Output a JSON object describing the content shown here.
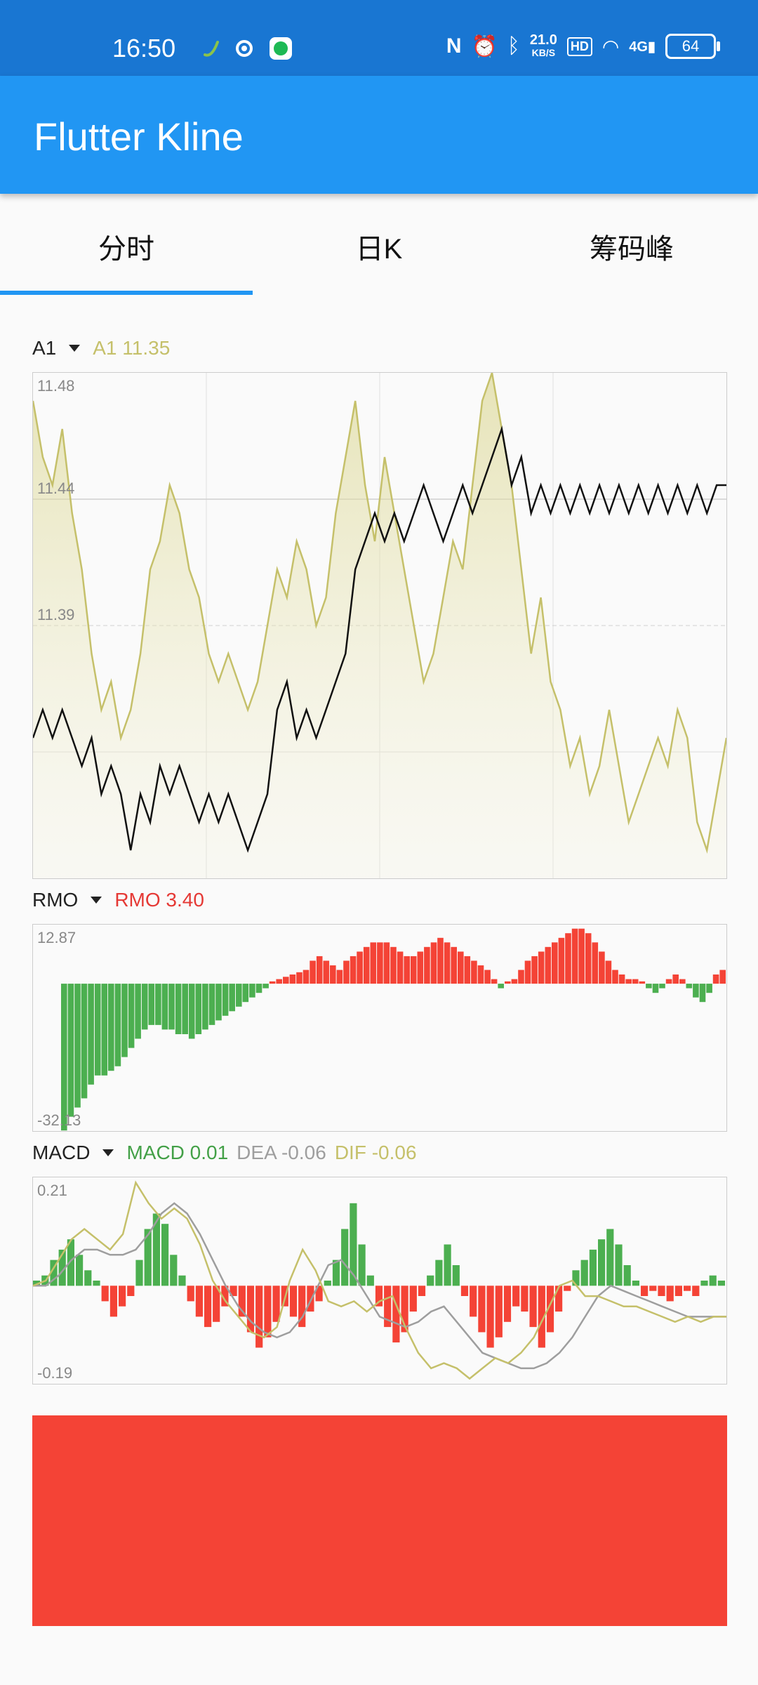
{
  "status": {
    "time": "16:50",
    "net_speed": "21.0",
    "net_unit": "KB/S",
    "hd": "HD",
    "signal": "4G",
    "battery": "64"
  },
  "app": {
    "title": "Flutter Kline"
  },
  "tabs": [
    "分时",
    "日K",
    "筹码峰"
  ],
  "colors": {
    "primary": "#2196F3",
    "status_bar": "#1976D2",
    "red": "#F44336",
    "green": "#4CAF50",
    "olive": "#C5C06A"
  },
  "chart_data": [
    {
      "type": "line",
      "indicator": "A1",
      "legend_value": "A1 11.35",
      "y_ticks": [
        "11.48",
        "11.44",
        "11.39"
      ],
      "ylim": [
        11.3,
        11.48
      ],
      "series": [
        {
          "name": "A1",
          "color": "#C5C06A",
          "values": [
            11.47,
            11.45,
            11.44,
            11.46,
            11.43,
            11.41,
            11.38,
            11.36,
            11.37,
            11.35,
            11.36,
            11.38,
            11.41,
            11.42,
            11.44,
            11.43,
            11.41,
            11.4,
            11.38,
            11.37,
            11.38,
            11.37,
            11.36,
            11.37,
            11.39,
            11.41,
            11.4,
            11.42,
            11.41,
            11.39,
            11.4,
            11.43,
            11.45,
            11.47,
            11.44,
            11.42,
            11.45,
            11.43,
            11.41,
            11.39,
            11.37,
            11.38,
            11.4,
            11.42,
            11.41,
            11.44,
            11.47,
            11.48,
            11.46,
            11.44,
            11.41,
            11.38,
            11.4,
            11.37,
            11.36,
            11.34,
            11.35,
            11.33,
            11.34,
            11.36,
            11.34,
            11.32,
            11.33,
            11.34,
            11.35,
            11.34,
            11.36,
            11.35,
            11.32,
            11.31,
            11.33,
            11.35
          ]
        },
        {
          "name": "price",
          "color": "#111111",
          "values": [
            11.35,
            11.36,
            11.35,
            11.36,
            11.35,
            11.34,
            11.35,
            11.33,
            11.34,
            11.33,
            11.31,
            11.33,
            11.32,
            11.34,
            11.33,
            11.34,
            11.33,
            11.32,
            11.33,
            11.32,
            11.33,
            11.32,
            11.31,
            11.32,
            11.33,
            11.36,
            11.37,
            11.35,
            11.36,
            11.35,
            11.36,
            11.37,
            11.38,
            11.41,
            11.42,
            11.43,
            11.42,
            11.43,
            11.42,
            11.43,
            11.44,
            11.43,
            11.42,
            11.43,
            11.44,
            11.43,
            11.44,
            11.45,
            11.46,
            11.44,
            11.45,
            11.43,
            11.44,
            11.43,
            11.44,
            11.43,
            11.44,
            11.43,
            11.44,
            11.43,
            11.44,
            11.43,
            11.44,
            11.43,
            11.44,
            11.43,
            11.44,
            11.43,
            11.44,
            11.43,
            11.44,
            11.44
          ]
        }
      ]
    },
    {
      "type": "bar",
      "indicator": "RMO",
      "legend_value": "RMO 3.40",
      "y_ticks": [
        "12.87",
        "-32.13"
      ],
      "ylim": [
        -32.13,
        12.87
      ],
      "series": [
        {
          "name": "RMO",
          "values": [
            -32,
            -29,
            -27,
            -25,
            -22,
            -20,
            -20,
            -19,
            -18,
            -16,
            -14,
            -12,
            -10,
            -9,
            -9,
            -10,
            -10,
            -11,
            -11,
            -12,
            -11,
            -10,
            -9,
            -8,
            -7,
            -6,
            -5,
            -4,
            -3,
            -2,
            -1,
            0.5,
            1,
            1.5,
            2,
            2.5,
            3,
            5,
            6,
            5,
            4,
            3,
            5,
            6,
            7,
            8,
            9,
            9,
            9,
            8,
            7,
            6,
            6,
            7,
            8,
            9,
            10,
            9,
            8,
            7,
            6,
            5,
            4,
            3,
            1,
            -1,
            0.5,
            1,
            3,
            5,
            6,
            7,
            8,
            9,
            10,
            11,
            12,
            12,
            11,
            9,
            7,
            5,
            3,
            2,
            1,
            1,
            0.5,
            -1,
            -2,
            -1,
            1,
            2,
            1,
            -1,
            -3,
            -4,
            -2,
            2,
            3
          ]
        }
      ]
    },
    {
      "type": "bar",
      "indicator": "MACD",
      "legend_values": {
        "macd": "MACD 0.01",
        "dea": "DEA -0.06",
        "dif": "DIF -0.06"
      },
      "y_ticks": [
        "0.21",
        "-0.19"
      ],
      "ylim": [
        -0.19,
        0.21
      ],
      "series": [
        {
          "name": "MACD",
          "values": [
            0.01,
            0.02,
            0.05,
            0.07,
            0.09,
            0.06,
            0.03,
            0.01,
            -0.03,
            -0.06,
            -0.04,
            -0.02,
            0.05,
            0.11,
            0.14,
            0.12,
            0.06,
            0.02,
            -0.03,
            -0.06,
            -0.08,
            -0.07,
            -0.04,
            -0.02,
            -0.06,
            -0.09,
            -0.12,
            -0.1,
            -0.07,
            -0.04,
            -0.06,
            -0.08,
            -0.05,
            -0.03,
            0.01,
            0.05,
            0.11,
            0.16,
            0.08,
            0.02,
            -0.04,
            -0.08,
            -0.11,
            -0.09,
            -0.05,
            -0.02,
            0.02,
            0.05,
            0.08,
            0.04,
            -0.02,
            -0.06,
            -0.09,
            -0.12,
            -0.1,
            -0.07,
            -0.04,
            -0.05,
            -0.08,
            -0.12,
            -0.09,
            -0.05,
            -0.01,
            0.03,
            0.05,
            0.07,
            0.09,
            0.11,
            0.08,
            0.04,
            0.01,
            -0.02,
            -0.01,
            -0.02,
            -0.03,
            -0.02,
            -0.01,
            -0.02,
            0.01,
            0.02,
            0.01
          ]
        },
        {
          "name": "DEA",
          "color": "#9E9E9E",
          "values": [
            0.0,
            0.0,
            0.02,
            0.05,
            0.07,
            0.07,
            0.06,
            0.06,
            0.07,
            0.1,
            0.14,
            0.16,
            0.14,
            0.1,
            0.05,
            0.0,
            -0.04,
            -0.07,
            -0.09,
            -0.1,
            -0.09,
            -0.06,
            -0.01,
            0.04,
            0.05,
            0.02,
            -0.02,
            -0.06,
            -0.07,
            -0.08,
            -0.07,
            -0.05,
            -0.04,
            -0.07,
            -0.1,
            -0.13,
            -0.14,
            -0.15,
            -0.16,
            -0.16,
            -0.15,
            -0.13,
            -0.1,
            -0.06,
            -0.02,
            0.0,
            -0.01,
            -0.02,
            -0.03,
            -0.04,
            -0.05,
            -0.06,
            -0.06,
            -0.06,
            -0.06
          ]
        },
        {
          "name": "DIF",
          "color": "#C5C06A",
          "values": [
            0.0,
            0.01,
            0.05,
            0.09,
            0.11,
            0.09,
            0.07,
            0.1,
            0.2,
            0.16,
            0.13,
            0.15,
            0.13,
            0.08,
            0.01,
            -0.03,
            -0.06,
            -0.09,
            -0.1,
            -0.08,
            0.01,
            0.07,
            0.03,
            -0.03,
            -0.04,
            -0.03,
            -0.05,
            -0.03,
            -0.02,
            -0.08,
            -0.13,
            -0.16,
            -0.15,
            -0.16,
            -0.18,
            -0.16,
            -0.14,
            -0.15,
            -0.13,
            -0.1,
            -0.05,
            0.0,
            0.01,
            -0.02,
            -0.02,
            -0.03,
            -0.04,
            -0.04,
            -0.05,
            -0.06,
            -0.07,
            -0.06,
            -0.07,
            -0.06,
            -0.06
          ]
        }
      ]
    }
  ]
}
